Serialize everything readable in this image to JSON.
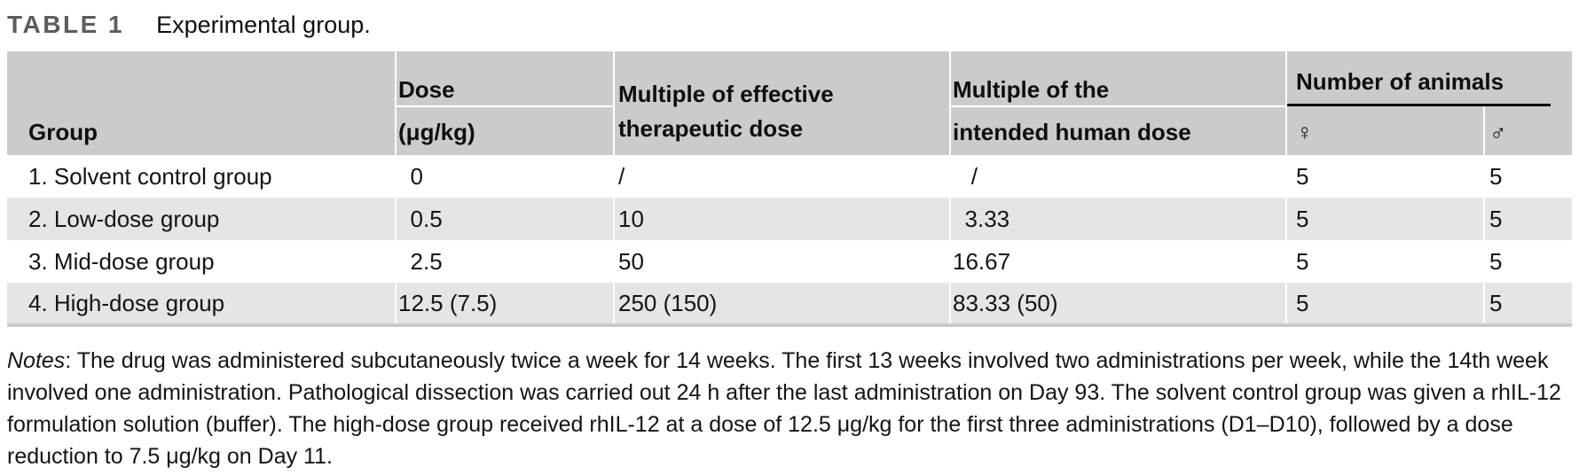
{
  "title": {
    "label": "TABLE 1",
    "caption": "Experimental group."
  },
  "table": {
    "header": {
      "group": "Group",
      "dose_line1": "Dose",
      "dose_line2": "(μg/kg)",
      "mult_eff_line1": "Multiple of effective",
      "mult_eff_line2": "therapeutic dose",
      "mult_human_line1": "Multiple of the",
      "mult_human_line2": "intended human dose",
      "animals": "Number of animals",
      "female_symbol": "♀",
      "male_symbol": "♂"
    },
    "rows": [
      {
        "group": "1. Solvent control group",
        "dose": "0",
        "mult_eff": "/",
        "mult_human": "/",
        "female": "5",
        "male": "5"
      },
      {
        "group": "2. Low-dose group",
        "dose": "0.5",
        "mult_eff": "10",
        "mult_human": "3.33",
        "female": "5",
        "male": "5"
      },
      {
        "group": "3. Mid-dose group",
        "dose": "2.5",
        "mult_eff": "50",
        "mult_human": "16.67",
        "female": "5",
        "male": "5"
      },
      {
        "group": "4. High-dose group",
        "dose": "12.5 (7.5)",
        "mult_eff": "250 (150)",
        "mult_human": "83.33 (50)",
        "female": "5",
        "male": "5"
      }
    ]
  },
  "notes": {
    "label": "Notes",
    "text": ": The drug was administered subcutaneously twice a week for 14 weeks. The first 13 weeks involved two administrations per week, while the 14th week involved one administration. Pathological dissection was carried out 24 h after the last administration on Day 93. The solvent control group was given a rhIL-12 formulation solution (buffer). The high-dose group received rhIL-12 at a dose of 12.5 μg/kg for the first three administrations (D1–D10), followed by a dose reduction to 7.5 μg/kg on Day 11."
  },
  "colors": {
    "header_bg": "#cbcbca",
    "stripe_bg": "#e6e5e3",
    "table_border": "#cbcbca",
    "title_gray": "#5c5c5c",
    "rule_black": "#000000",
    "grid_white": "#ffffff"
  }
}
